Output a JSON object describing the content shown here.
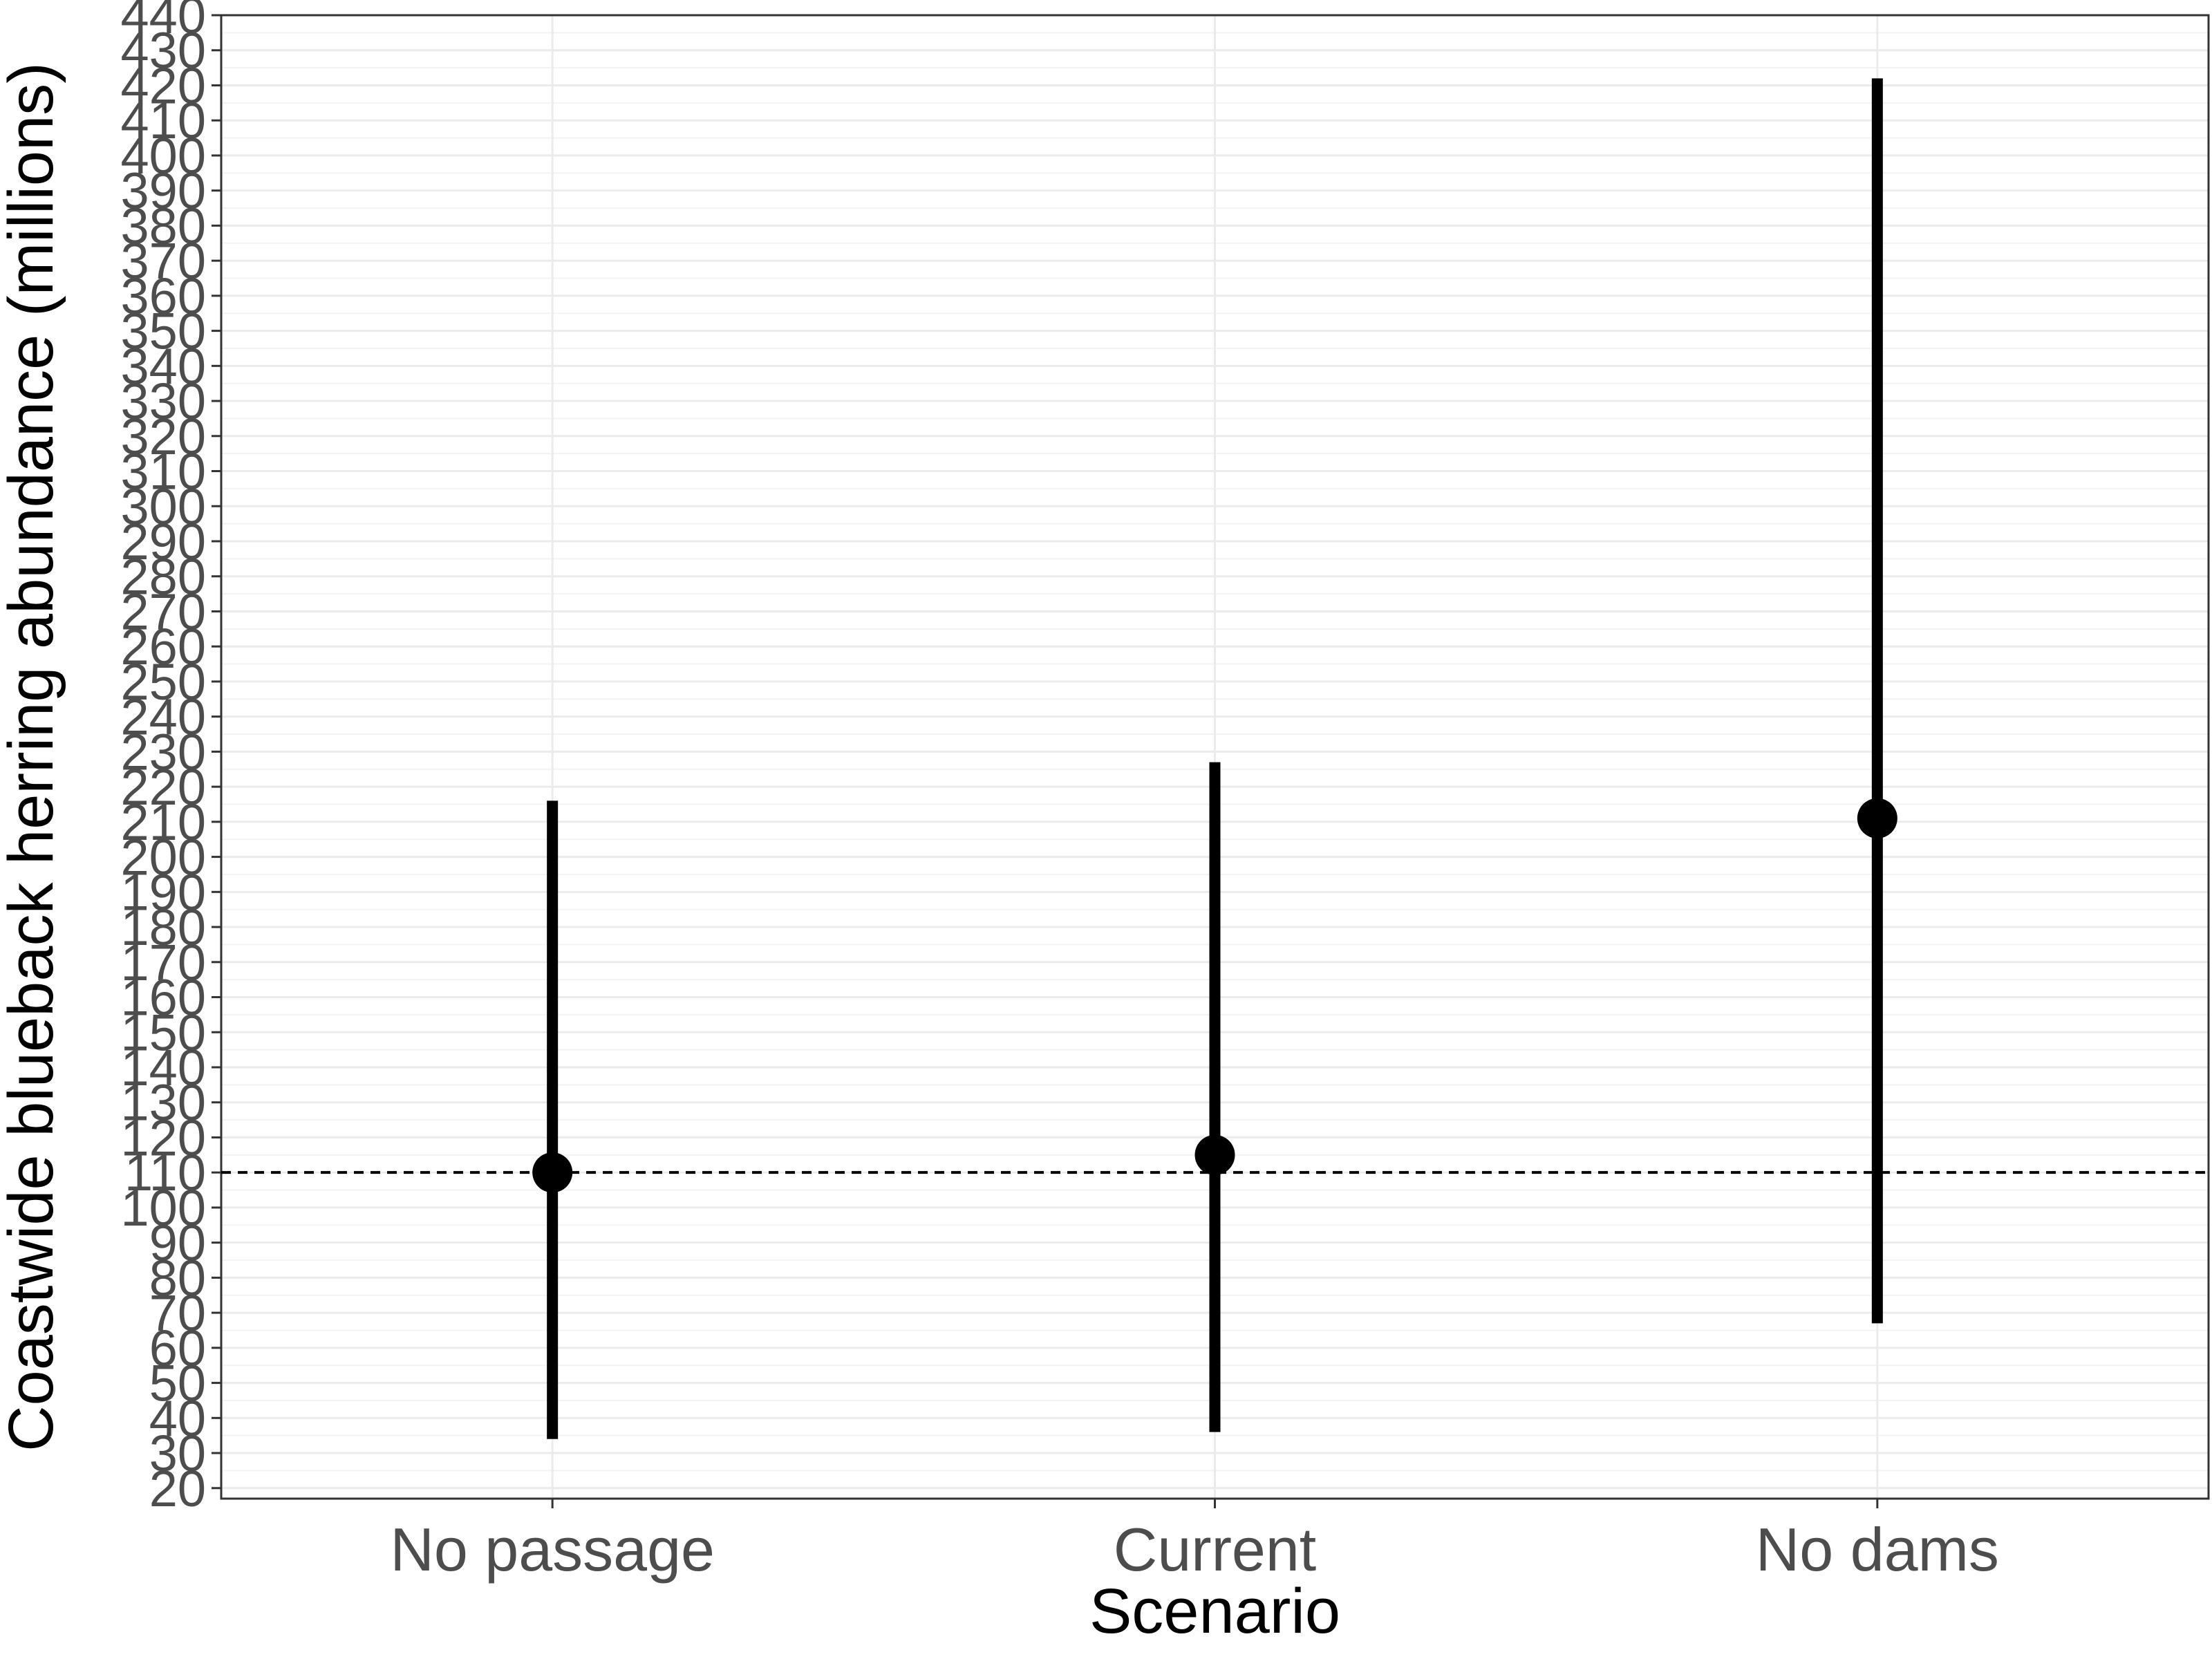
{
  "chart_data": {
    "type": "scatter",
    "title": "",
    "xlabel": "Scenario",
    "ylabel": "Coastwide blueback herring abundance (millions)",
    "categories": [
      "No passage",
      "Current",
      "No dams"
    ],
    "series": [
      {
        "points": [
          {
            "x": "No passage",
            "y": 110,
            "ymin": 34,
            "ymax": 216
          },
          {
            "x": "Current",
            "y": 115,
            "ymin": 36,
            "ymax": 227
          },
          {
            "x": "No dams",
            "y": 211,
            "ymin": 67,
            "ymax": 422
          }
        ]
      }
    ],
    "reference_line": {
      "y": 110,
      "style": "dashed"
    },
    "ylim": [
      17,
      440
    ],
    "y_ticks": [
      20,
      30,
      40,
      50,
      60,
      70,
      80,
      90,
      100,
      110,
      120,
      130,
      140,
      150,
      160,
      170,
      180,
      190,
      200,
      210,
      220,
      230,
      240,
      250,
      260,
      270,
      280,
      290,
      300,
      310,
      320,
      330,
      340,
      350,
      360,
      370,
      380,
      390,
      400,
      410,
      420,
      430,
      440
    ],
    "grid": true,
    "legend": "none",
    "colors": {
      "marks": "#000000",
      "grid": "#ebebeb",
      "panel_border": "#333333",
      "tick_text": "#4d4d4d"
    }
  }
}
